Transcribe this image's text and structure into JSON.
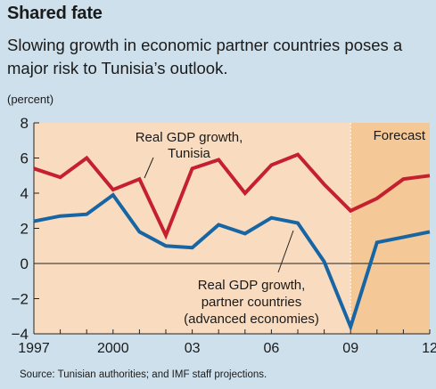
{
  "title": "Shared fate",
  "subtitle": "Slowing growth in economic partner countries poses a major risk to Tunisia’s outlook.",
  "unit_label": "(percent)",
  "source": "Source: Tunisian authorities; and IMF staff projections.",
  "forecast_label": "Forecast",
  "colors": {
    "background": "#cde0ec",
    "plot_area": "#f9dcc0",
    "forecast_area": "#f5c897",
    "tunisia": "#c4202f",
    "partners": "#1865a3"
  },
  "chart_data": {
    "type": "line",
    "x": [
      1997,
      1998,
      1999,
      2000,
      2001,
      2002,
      2003,
      2004,
      2005,
      2006,
      2007,
      2008,
      2009,
      2010,
      2011,
      2012
    ],
    "xticks": [
      1997,
      2000,
      2003,
      2006,
      2009,
      2012
    ],
    "xtick_labels": [
      "1997",
      "2000",
      "03",
      "06",
      "09",
      "12"
    ],
    "ylim": [
      -4,
      8
    ],
    "yticks": [
      -4,
      -2,
      0,
      2,
      4,
      6,
      8
    ],
    "ytick_labels": [
      "−4",
      "−2",
      "0",
      "2",
      "4",
      "6",
      "8"
    ],
    "forecast_start": 2009,
    "series": [
      {
        "name": "Real GDP growth, Tunisia",
        "label_lines": [
          "Real GDP growth,",
          "Tunisia"
        ],
        "values": [
          5.4,
          4.9,
          6.0,
          4.2,
          4.8,
          1.6,
          5.4,
          5.9,
          4.0,
          5.6,
          6.2,
          4.5,
          3.0,
          3.7,
          4.8,
          5.0
        ]
      },
      {
        "name": "Real GDP growth, partner countries (advanced economies)",
        "label_lines": [
          "Real GDP growth,",
          "partner countries",
          "(advanced economies)"
        ],
        "values": [
          2.4,
          2.7,
          2.8,
          3.9,
          1.8,
          1.0,
          0.9,
          2.2,
          1.7,
          2.6,
          2.3,
          0.1,
          -3.6,
          1.2,
          1.5,
          1.8
        ]
      }
    ]
  }
}
